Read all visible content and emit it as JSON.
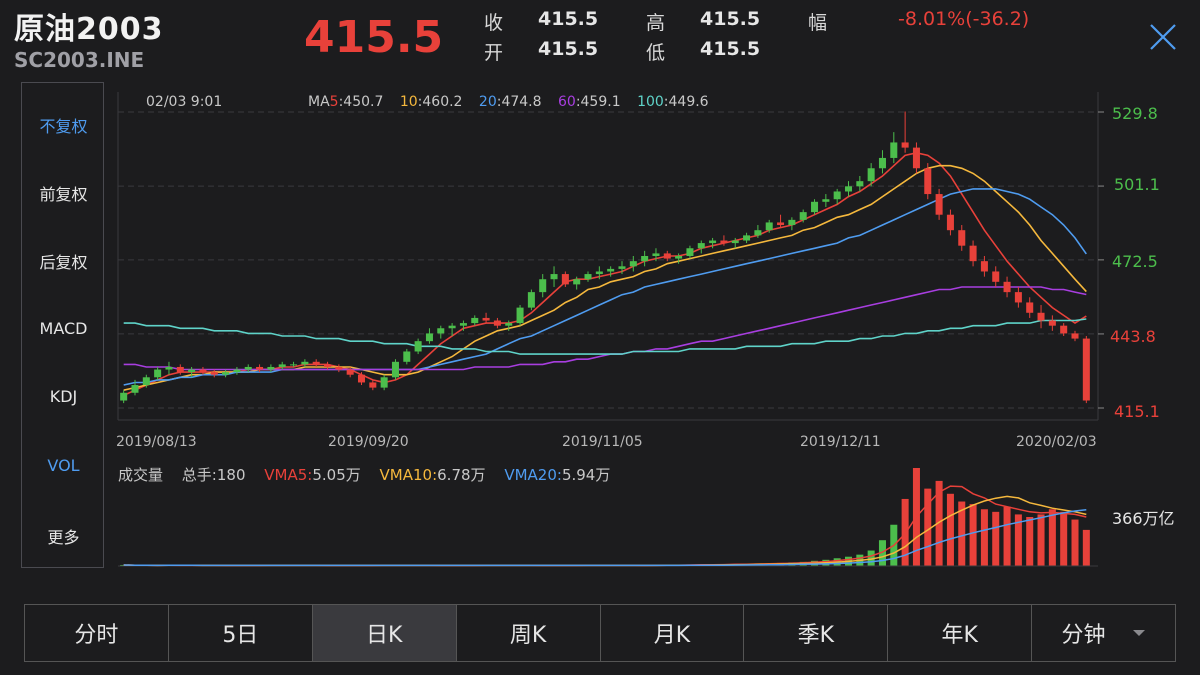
{
  "header": {
    "title": "原油2003",
    "code": "SC2003.INE",
    "price": "415.5",
    "quote": [
      {
        "label": "收",
        "value": "415.5"
      },
      {
        "label": "高",
        "value": "415.5"
      },
      {
        "label": "幅",
        "value": "-8.01%(-36.2)"
      },
      {
        "label": "开",
        "value": "415.5"
      },
      {
        "label": "低",
        "value": "415.5"
      }
    ]
  },
  "side_menu": [
    "不复权",
    "前复权",
    "后复权",
    "MACD",
    "KDJ",
    "VOL",
    "更多"
  ],
  "tabs": [
    "分时",
    "5日",
    "日K",
    "周K",
    "月K",
    "季K",
    "年K",
    "分钟"
  ],
  "colors": {
    "up": "#4cbe4c",
    "down": "#e8413a",
    "ma5": "#e8413a",
    "ma10": "#f5b83d",
    "ma20": "#4f9cf0",
    "ma60": "#a83ee0",
    "ma100": "#5fd3c9",
    "accent": "#4f9cf0"
  },
  "chart_data": [
    {
      "type": "candlestick",
      "info_date": "02/03 9:01",
      "ma_legend": {
        "prefix": "MA",
        "items": [
          {
            "label": "5",
            "value": ":450.7",
            "color": "#e8413a"
          },
          {
            "label": "10",
            "value": ":460.2",
            "color": "#f5b83d"
          },
          {
            "label": "20",
            "value": ":474.8",
            "color": "#4f9cf0"
          },
          {
            "label": "60",
            "value": ":459.1",
            "color": "#a83ee0"
          },
          {
            "label": "100",
            "value": ":449.6",
            "color": "#5fd3c9"
          }
        ]
      },
      "y_ticks": [
        {
          "value": 529.8,
          "label": "529.8"
        },
        {
          "value": 501.1,
          "label": "501.1"
        },
        {
          "value": 472.5,
          "label": "472.5"
        },
        {
          "value": 443.8,
          "label": "443.8"
        },
        {
          "value": 415.1,
          "label": "415.1"
        }
      ],
      "x_ticks": [
        "2019/08/13",
        "2019/09/20",
        "2019/11/05",
        "2019/12/11",
        "2020/02/03"
      ],
      "ylim": [
        415.1,
        529.8
      ],
      "grid": true,
      "candles": [
        [
          418,
          422,
          417,
          421
        ],
        [
          421,
          426,
          420,
          424
        ],
        [
          424,
          428,
          423,
          427
        ],
        [
          427,
          431,
          426,
          430
        ],
        [
          430,
          433,
          428,
          431
        ],
        [
          431,
          432,
          428,
          429
        ],
        [
          429,
          431,
          427,
          430
        ],
        [
          430,
          431,
          428,
          429
        ],
        [
          429,
          430,
          427,
          428
        ],
        [
          428,
          430,
          427,
          429
        ],
        [
          429,
          431,
          428,
          430
        ],
        [
          430,
          432,
          429,
          431
        ],
        [
          431,
          432,
          429,
          430
        ],
        [
          430,
          432,
          429,
          431
        ],
        [
          431,
          433,
          430,
          432
        ],
        [
          432,
          433,
          431,
          432
        ],
        [
          432,
          434,
          431,
          433
        ],
        [
          433,
          434,
          431,
          432
        ],
        [
          432,
          433,
          430,
          431
        ],
        [
          431,
          432,
          429,
          430
        ],
        [
          430,
          431,
          427,
          428
        ],
        [
          428,
          429,
          424,
          425
        ],
        [
          425,
          426,
          422,
          423
        ],
        [
          423,
          428,
          422,
          427
        ],
        [
          427,
          434,
          426,
          433
        ],
        [
          433,
          438,
          432,
          437
        ],
        [
          437,
          442,
          436,
          441
        ],
        [
          441,
          446,
          440,
          444
        ],
        [
          444,
          447,
          442,
          446
        ],
        [
          446,
          448,
          443,
          447
        ],
        [
          447,
          449,
          445,
          448
        ],
        [
          448,
          451,
          447,
          450
        ],
        [
          450,
          452,
          448,
          449
        ],
        [
          449,
          450,
          446,
          447
        ],
        [
          447,
          449,
          445,
          448
        ],
        [
          448,
          455,
          447,
          454
        ],
        [
          454,
          461,
          453,
          460
        ],
        [
          460,
          467,
          458,
          465
        ],
        [
          465,
          470,
          462,
          467
        ],
        [
          467,
          468,
          462,
          463
        ],
        [
          463,
          466,
          461,
          465
        ],
        [
          465,
          468,
          464,
          467
        ],
        [
          467,
          470,
          465,
          468
        ],
        [
          468,
          470,
          466,
          469
        ],
        [
          469,
          472,
          467,
          470
        ],
        [
          470,
          474,
          468,
          472
        ],
        [
          472,
          476,
          470,
          474
        ],
        [
          474,
          477,
          472,
          475
        ],
        [
          475,
          476,
          472,
          473
        ],
        [
          473,
          475,
          471,
          474
        ],
        [
          474,
          478,
          473,
          477
        ],
        [
          477,
          480,
          475,
          479
        ],
        [
          479,
          481,
          477,
          480
        ],
        [
          480,
          482,
          478,
          479
        ],
        [
          479,
          481,
          477,
          480
        ],
        [
          480,
          483,
          479,
          482
        ],
        [
          482,
          486,
          481,
          484
        ],
        [
          484,
          488,
          483,
          487
        ],
        [
          487,
          490,
          485,
          486
        ],
        [
          486,
          489,
          484,
          488
        ],
        [
          488,
          492,
          487,
          491
        ],
        [
          491,
          496,
          490,
          495
        ],
        [
          495,
          498,
          493,
          496
        ],
        [
          496,
          500,
          494,
          499
        ],
        [
          499,
          503,
          497,
          501
        ],
        [
          501,
          505,
          499,
          503
        ],
        [
          503,
          510,
          501,
          508
        ],
        [
          508,
          515,
          506,
          512
        ],
        [
          512,
          522,
          510,
          518
        ],
        [
          518,
          530,
          514,
          516
        ],
        [
          516,
          518,
          506,
          508
        ],
        [
          508,
          510,
          496,
          498
        ],
        [
          498,
          500,
          488,
          490
        ],
        [
          490,
          492,
          482,
          484
        ],
        [
          484,
          486,
          476,
          478
        ],
        [
          478,
          480,
          470,
          472
        ],
        [
          472,
          474,
          466,
          468
        ],
        [
          468,
          470,
          462,
          464
        ],
        [
          464,
          466,
          458,
          460
        ],
        [
          460,
          462,
          454,
          456
        ],
        [
          456,
          458,
          450,
          452
        ],
        [
          452,
          455,
          446,
          449
        ],
        [
          449,
          451,
          445,
          447
        ],
        [
          447,
          448,
          443,
          444
        ],
        [
          444,
          445,
          441,
          442
        ],
        [
          442,
          443,
          417,
          418
        ]
      ],
      "ma_series": [
        {
          "name": "5",
          "values": [
            420,
            422,
            424,
            426,
            428,
            429,
            429,
            429,
            429,
            429,
            429,
            430,
            430,
            430,
            431,
            431,
            432,
            432,
            432,
            431,
            430,
            428,
            426,
            425,
            426,
            428,
            432,
            436,
            440,
            443,
            446,
            447,
            448,
            448,
            448,
            449,
            452,
            456,
            460,
            464,
            465,
            465,
            466,
            467,
            468,
            470,
            472,
            473,
            474,
            474,
            475,
            477,
            478,
            479,
            480,
            481,
            482,
            484,
            485,
            486,
            488,
            490,
            492,
            494,
            497,
            499,
            502,
            505,
            509,
            513,
            514,
            513,
            510,
            505,
            498,
            491,
            484,
            478,
            472,
            467,
            462,
            458,
            454,
            451,
            448,
            450.7
          ]
        },
        {
          "name": "10",
          "values": [
            422,
            423,
            424,
            425,
            426,
            427,
            428,
            428,
            429,
            429,
            429,
            429,
            430,
            430,
            430,
            430,
            431,
            431,
            431,
            431,
            431,
            430,
            429,
            428,
            428,
            428,
            429,
            431,
            433,
            435,
            438,
            441,
            443,
            445,
            446,
            447,
            449,
            451,
            453,
            456,
            458,
            461,
            462,
            464,
            465,
            466,
            468,
            469,
            471,
            472,
            473,
            474,
            475,
            476,
            477,
            478,
            479,
            480,
            481,
            482,
            484,
            485,
            487,
            489,
            490,
            492,
            494,
            497,
            500,
            503,
            506,
            508,
            509,
            509,
            508,
            506,
            503,
            499,
            495,
            491,
            486,
            480,
            475,
            470,
            465,
            460.2
          ]
        },
        {
          "name": "20",
          "values": [
            424,
            425,
            425,
            426,
            426,
            427,
            427,
            428,
            428,
            428,
            429,
            429,
            429,
            429,
            430,
            430,
            430,
            430,
            430,
            430,
            430,
            430,
            430,
            430,
            430,
            430,
            430,
            431,
            432,
            433,
            434,
            435,
            436,
            438,
            440,
            442,
            443,
            445,
            447,
            449,
            451,
            453,
            455,
            457,
            459,
            460,
            462,
            463,
            464,
            465,
            466,
            467,
            468,
            469,
            470,
            471,
            472,
            473,
            474,
            475,
            476,
            477,
            478,
            479,
            481,
            482,
            484,
            486,
            488,
            490,
            492,
            494,
            496,
            498,
            499,
            500,
            500,
            500,
            499,
            498,
            496,
            493,
            490,
            486,
            481,
            474.8
          ]
        },
        {
          "name": "60",
          "values": [
            432,
            432,
            431,
            431,
            431,
            430,
            430,
            430,
            430,
            430,
            430,
            430,
            430,
            430,
            430,
            430,
            430,
            430,
            430,
            430,
            430,
            430,
            430,
            430,
            430,
            430,
            430,
            430,
            430,
            430,
            430,
            431,
            431,
            431,
            431,
            432,
            432,
            432,
            433,
            433,
            434,
            434,
            435,
            436,
            436,
            437,
            437,
            438,
            438,
            439,
            440,
            441,
            441,
            442,
            443,
            444,
            445,
            446,
            447,
            448,
            449,
            450,
            451,
            452,
            453,
            454,
            455,
            456,
            457,
            458,
            459,
            460,
            461,
            461,
            462,
            462,
            462,
            462,
            462,
            462,
            462,
            462,
            461,
            461,
            460,
            459.1
          ]
        },
        {
          "name": "100",
          "values": [
            448,
            448,
            447,
            447,
            447,
            446,
            446,
            446,
            445,
            445,
            445,
            444,
            444,
            444,
            443,
            443,
            443,
            442,
            442,
            442,
            441,
            441,
            441,
            440,
            440,
            440,
            439,
            439,
            439,
            438,
            438,
            438,
            437,
            437,
            437,
            436,
            436,
            436,
            436,
            436,
            436,
            436,
            436,
            436,
            436,
            437,
            437,
            437,
            437,
            437,
            438,
            438,
            438,
            438,
            438,
            439,
            439,
            439,
            439,
            440,
            440,
            440,
            441,
            441,
            441,
            442,
            442,
            443,
            443,
            444,
            444,
            445,
            445,
            446,
            446,
            447,
            447,
            447,
            448,
            448,
            448,
            449,
            449,
            449,
            449,
            449.6
          ]
        }
      ]
    },
    {
      "type": "bar",
      "legend": {
        "label": "成交量",
        "total_label": "总手:",
        "total_value": "180",
        "vma": [
          {
            "label": "VMA5:",
            "value": "5.05万",
            "color": "#e8413a"
          },
          {
            "label": "VMA10:",
            "value": "6.78万",
            "color": "#f5b83d"
          },
          {
            "label": "VMA20:",
            "value": "5.94万",
            "color": "#4f9cf0"
          }
        ]
      },
      "y_label": "366万亿",
      "values": [
        0.2,
        0.1,
        0.1,
        0.1,
        0.2,
        0.1,
        0.1,
        0.1,
        0.1,
        0.1,
        0.1,
        0.1,
        0.1,
        0.2,
        0.1,
        0.1,
        0.1,
        0.1,
        0.1,
        0.1,
        0.1,
        0.1,
        0.1,
        0.2,
        0.1,
        0.1,
        0.1,
        0.1,
        0.1,
        0.1,
        0.1,
        0.1,
        0.2,
        0.1,
        0.1,
        0.1,
        0.1,
        0.1,
        0.1,
        0.1,
        0.1,
        0.2,
        0.1,
        0.1,
        0.1,
        0.1,
        0.1,
        0.2,
        0.2,
        0.2,
        0.3,
        0.3,
        0.3,
        0.3,
        0.4,
        0.4,
        0.5,
        0.5,
        0.6,
        0.7,
        0.8,
        1.0,
        1.2,
        1.5,
        1.8,
        2.2,
        3.0,
        5.0,
        8.0,
        13.0,
        19.0,
        15.0,
        16.5,
        14.0,
        12.5,
        12.0,
        11.0,
        10.5,
        11.5,
        10.0,
        9.5,
        10.0,
        11.0,
        10.5,
        9.0,
        7.0
      ]
    }
  ]
}
